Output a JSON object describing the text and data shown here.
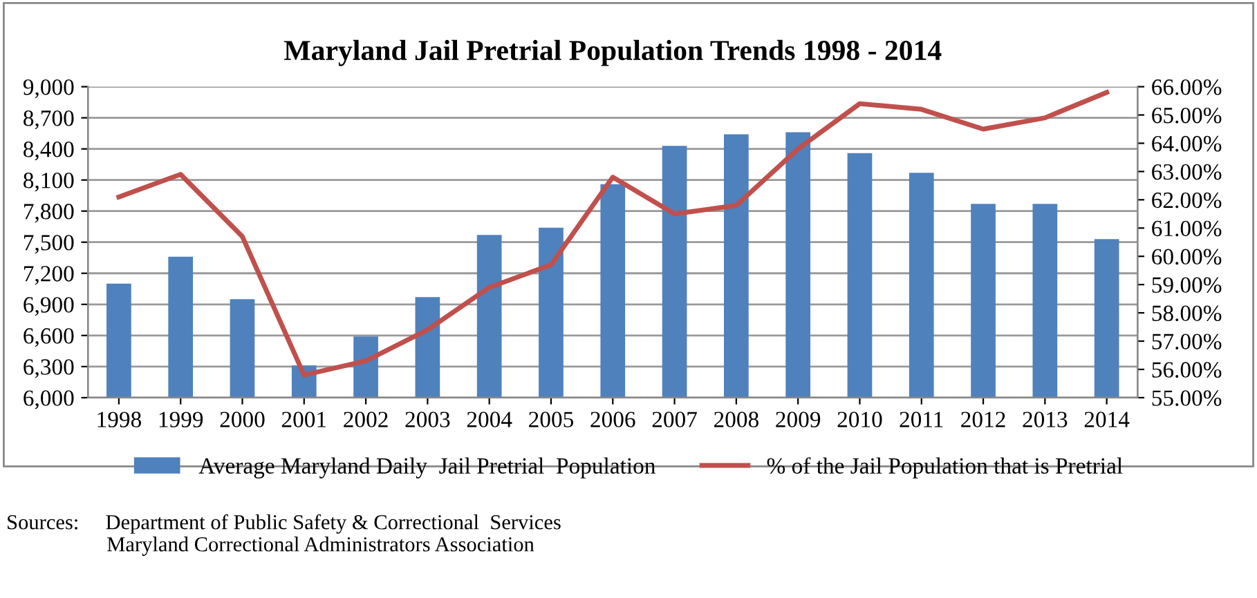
{
  "chart_data": {
    "type": "bar",
    "title": "Maryland Jail Pretrial Population Trends 1998 - 2014",
    "categories": [
      "1998",
      "1999",
      "2000",
      "2001",
      "2002",
      "2003",
      "2004",
      "2005",
      "2006",
      "2007",
      "2008",
      "2009",
      "2010",
      "2011",
      "2012",
      "2013",
      "2014"
    ],
    "series": [
      {
        "name": "Average Maryland Daily  Jail Pretrial  Population",
        "color": "#4f81bd",
        "values": [
          7100,
          7360,
          6950,
          6310,
          6590,
          6970,
          7570,
          7640,
          8060,
          8430,
          8540,
          8560,
          8360,
          8170,
          7870,
          7870,
          7530
        ]
      },
      {
        "name": "% of the Jail Population that is Pretrial",
        "type": "line",
        "axis": "y2",
        "color": "#c0504d",
        "values": [
          62.1,
          62.9,
          60.7,
          55.8,
          56.3,
          57.4,
          58.9,
          59.7,
          62.8,
          61.5,
          61.8,
          63.8,
          65.4,
          65.2,
          64.5,
          64.9,
          65.8
        ]
      }
    ],
    "ylim": [
      6000,
      9000
    ],
    "yticks": [
      {
        "value": 6000,
        "label": "6,000"
      },
      {
        "value": 6300,
        "label": "6,300"
      },
      {
        "value": 6600,
        "label": "6,600"
      },
      {
        "value": 6900,
        "label": "6,900"
      },
      {
        "value": 7200,
        "label": "7,200"
      },
      {
        "value": 7500,
        "label": "7,500"
      },
      {
        "value": 7800,
        "label": "7,800"
      },
      {
        "value": 8100,
        "label": "8,100"
      },
      {
        "value": 8400,
        "label": "8,400"
      },
      {
        "value": 8700,
        "label": "8,700"
      },
      {
        "value": 9000,
        "label": "9,000"
      }
    ],
    "y2lim": [
      55,
      66
    ],
    "y2ticks": [
      {
        "value": 55,
        "label": "55.00%"
      },
      {
        "value": 56,
        "label": "56.00%"
      },
      {
        "value": 57,
        "label": "57.00%"
      },
      {
        "value": 58,
        "label": "58.00%"
      },
      {
        "value": 59,
        "label": "59.00%"
      },
      {
        "value": 60,
        "label": "60.00%"
      },
      {
        "value": 61,
        "label": "61.00%"
      },
      {
        "value": 62,
        "label": "62.00%"
      },
      {
        "value": 63,
        "label": "63.00%"
      },
      {
        "value": 64,
        "label": "64.00%"
      },
      {
        "value": 65,
        "label": "65.00%"
      },
      {
        "value": 66,
        "label": "66.00%"
      }
    ],
    "grid": "y",
    "legend": "bottom",
    "marker": "none",
    "line_style": "solid",
    "annotations": [
      "Sources:     Department of Public Safety & Correctional  Services\n                   Maryland Correctional Administrators Association"
    ]
  }
}
